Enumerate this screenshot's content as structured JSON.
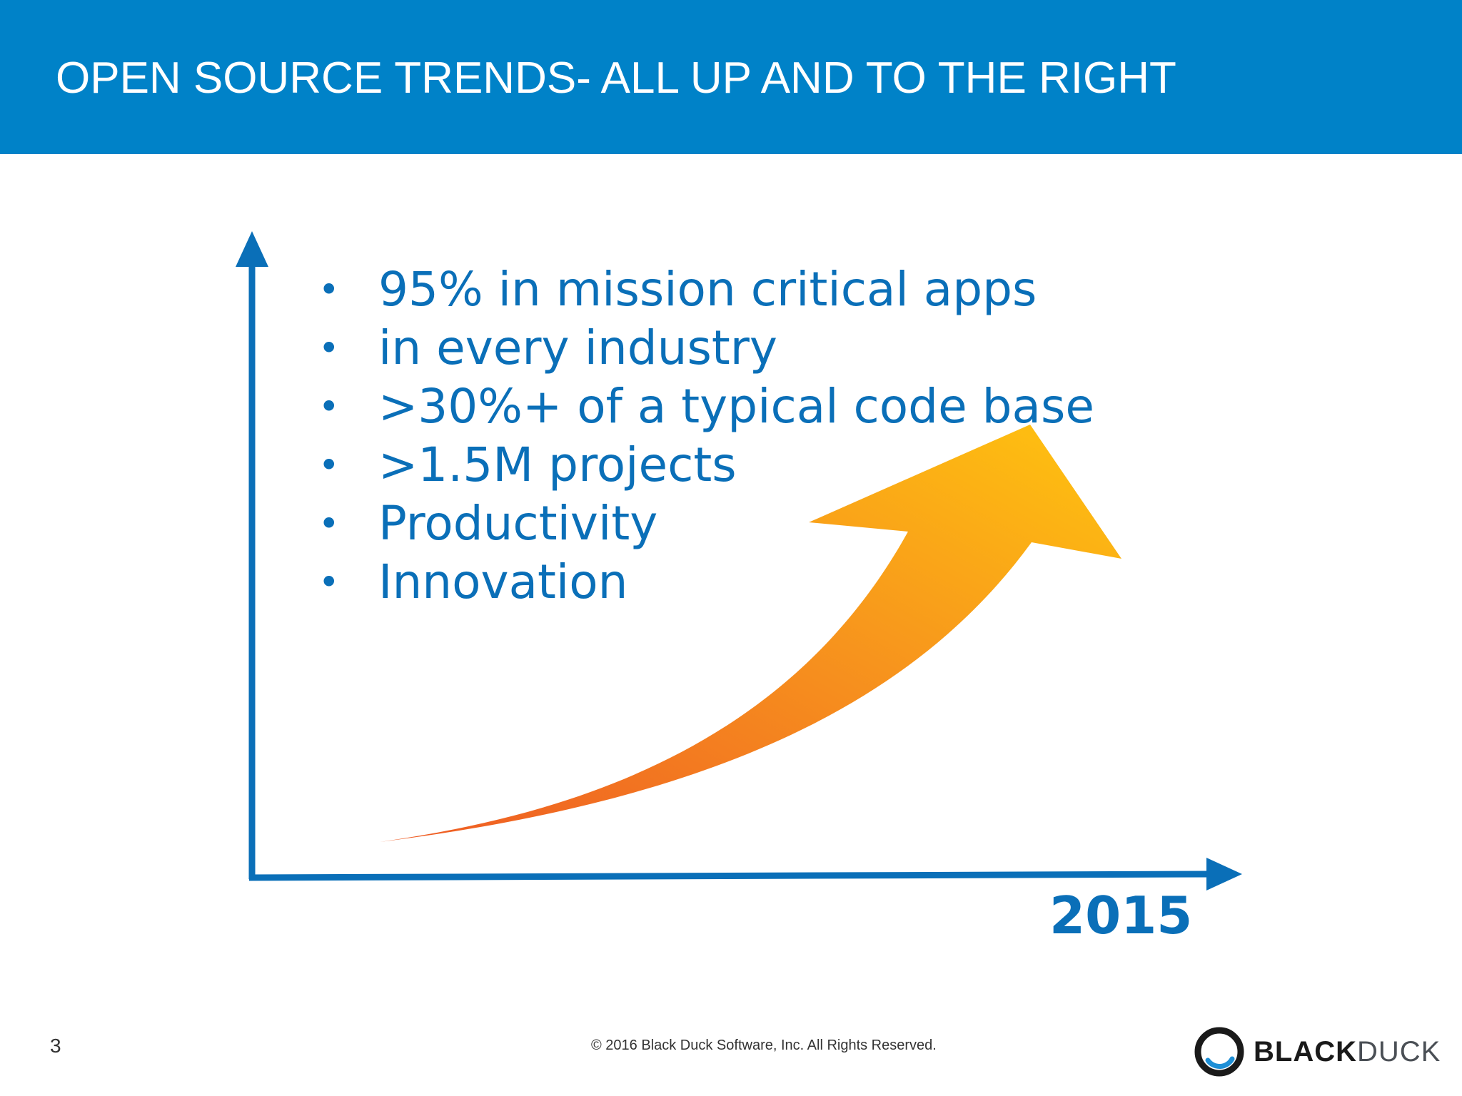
{
  "header": {
    "title": "OPEN SOURCE TRENDS- ALL UP AND TO THE RIGHT"
  },
  "bullets": [
    "95% in mission critical apps",
    "in every industry",
    ">30%+ of a typical code base",
    ">1.5M projects",
    "Productivity",
    "Innovation"
  ],
  "bullet_symbol": "•",
  "chart": {
    "x_axis_label": "2015"
  },
  "footer": {
    "page_number": "3",
    "copyright": "© 2016 Black Duck Software, Inc.  All Rights Reserved.",
    "logo_primary": "BLACK",
    "logo_secondary": "DUCK"
  },
  "colors": {
    "header_bg": "#0082c8",
    "text_blue": "#0a6fb8",
    "axis_blue": "#0a6fb8",
    "arrow_start": "#ee5a24",
    "arrow_end": "#ffc40f"
  }
}
